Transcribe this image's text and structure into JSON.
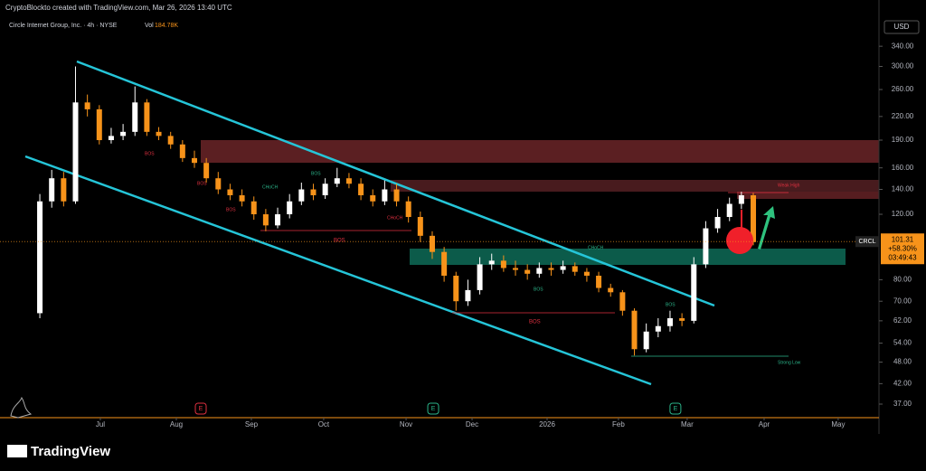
{
  "header": {
    "credit": "CryptoBlockto created with TradingView.com, Mar 26, 2026 13:40 UTC",
    "symbol": "Circle Internet Group, Inc. · 4h · NYSE",
    "volume_label": "Vol",
    "volume": "184.78K",
    "currency": "USD",
    "brand": "TradingView"
  },
  "chart_data": {
    "type": "candlestick",
    "log_scale": true,
    "up_color": "#ffffff",
    "down_color": "#f7931a",
    "x": [
      0,
      1,
      2,
      3,
      4,
      5,
      6,
      7,
      8,
      9,
      10,
      11,
      12,
      13,
      14,
      15,
      16,
      17,
      18,
      19,
      20,
      21,
      22,
      23,
      24,
      25,
      26,
      27,
      28,
      29,
      30,
      31,
      32,
      33,
      34,
      35,
      36,
      37,
      38,
      39,
      40,
      41,
      42,
      43,
      44,
      45,
      46,
      47,
      48,
      49,
      50,
      51,
      52,
      53,
      54,
      55,
      56,
      57,
      58,
      59,
      60
    ],
    "open": [
      65,
      130,
      150,
      130,
      240,
      230,
      190,
      195,
      200,
      240,
      200,
      195,
      185,
      170,
      165,
      150,
      140,
      135,
      130,
      120,
      112,
      120,
      130,
      140,
      135,
      145,
      150,
      145,
      135,
      130,
      140,
      130,
      118,
      105,
      95,
      82,
      70,
      75,
      88,
      90,
      86,
      85,
      83,
      86,
      85,
      87,
      84,
      82,
      76,
      74,
      66,
      52,
      58,
      60,
      63,
      62,
      88,
      110,
      118,
      128,
      135
    ],
    "high": [
      136,
      158,
      156,
      300,
      252,
      236,
      205,
      210,
      265,
      245,
      206,
      200,
      190,
      178,
      170,
      156,
      145,
      140,
      134,
      124,
      125,
      136,
      146,
      145,
      150,
      160,
      155,
      150,
      140,
      148,
      145,
      134,
      122,
      108,
      98,
      84,
      80,
      92,
      94,
      93,
      90,
      88,
      89,
      89,
      90,
      89,
      86,
      84,
      78,
      75,
      67,
      61,
      63,
      66,
      65,
      92,
      115,
      124,
      133,
      138,
      137
    ],
    "low": [
      63,
      125,
      126,
      128,
      220,
      185,
      186,
      190,
      195,
      195,
      190,
      180,
      166,
      160,
      146,
      136,
      131,
      126,
      116,
      108,
      110,
      117,
      127,
      131,
      132,
      142,
      141,
      131,
      126,
      127,
      126,
      114,
      101,
      91,
      79,
      66,
      68,
      73,
      85,
      84,
      82,
      80,
      81,
      82,
      83,
      82,
      79,
      74,
      72,
      64,
      50,
      51,
      56,
      58,
      60,
      61,
      86,
      107,
      115,
      124,
      99
    ],
    "close": [
      130,
      150,
      130,
      240,
      230,
      190,
      195,
      200,
      240,
      200,
      195,
      185,
      170,
      165,
      150,
      140,
      135,
      130,
      120,
      112,
      120,
      130,
      140,
      135,
      145,
      150,
      145,
      135,
      130,
      140,
      130,
      118,
      105,
      95,
      82,
      70,
      75,
      88,
      90,
      86,
      85,
      83,
      86,
      85,
      87,
      84,
      82,
      76,
      74,
      66,
      52,
      58,
      60,
      63,
      62,
      88,
      110,
      118,
      128,
      135,
      101
    ],
    "xlim": [
      -3.35,
      70.57
    ],
    "xticks": [
      {
        "value": 5.09,
        "label": "Jul"
      },
      {
        "value": 11.48,
        "label": "Aug"
      },
      {
        "value": 17.79,
        "label": "Sep"
      },
      {
        "value": 23.87,
        "label": "Oct"
      },
      {
        "value": 30.8,
        "label": "Nov"
      },
      {
        "value": 36.35,
        "label": "Dec"
      },
      {
        "value": 42.66,
        "label": "2026"
      },
      {
        "value": 48.66,
        "label": "Feb"
      },
      {
        "value": 54.44,
        "label": "Mar"
      },
      {
        "value": 60.91,
        "label": "Apr"
      },
      {
        "value": 67.14,
        "label": "May"
      }
    ],
    "ylim": [
      34.4,
      366
    ],
    "yticks": [
      {
        "value": 340,
        "label": "340.00"
      },
      {
        "value": 300,
        "label": "300.00"
      },
      {
        "value": 260,
        "label": "260.00"
      },
      {
        "value": 220,
        "label": "220.00"
      },
      {
        "value": 190,
        "label": "190.00"
      },
      {
        "value": 160,
        "label": "160.00"
      },
      {
        "value": 140,
        "label": "140.00"
      },
      {
        "value": 120,
        "label": "120.00"
      },
      {
        "value": 80,
        "label": "80.00"
      },
      {
        "value": 70,
        "label": "70.00"
      },
      {
        "value": 62,
        "label": "62.00"
      },
      {
        "value": 54,
        "label": "54.00"
      },
      {
        "value": 48,
        "label": "48.00"
      },
      {
        "value": 42,
        "label": "42.00"
      },
      {
        "value": 37,
        "label": "37.00"
      }
    ],
    "last_price": {
      "symbol": "CRCL",
      "value": 101.31,
      "label": "101.31",
      "change": "+58.30%",
      "countdown": "03:49:43"
    },
    "annotations": [
      "BOS",
      "BOS",
      "BOS",
      "CHoCH",
      "BOS",
      "BOS",
      "CHoCH",
      "BOS",
      "BOS",
      "Weak High",
      "Strong Low",
      "CHoCH",
      "BOS"
    ],
    "events": [
      "E",
      "E",
      "E"
    ]
  }
}
